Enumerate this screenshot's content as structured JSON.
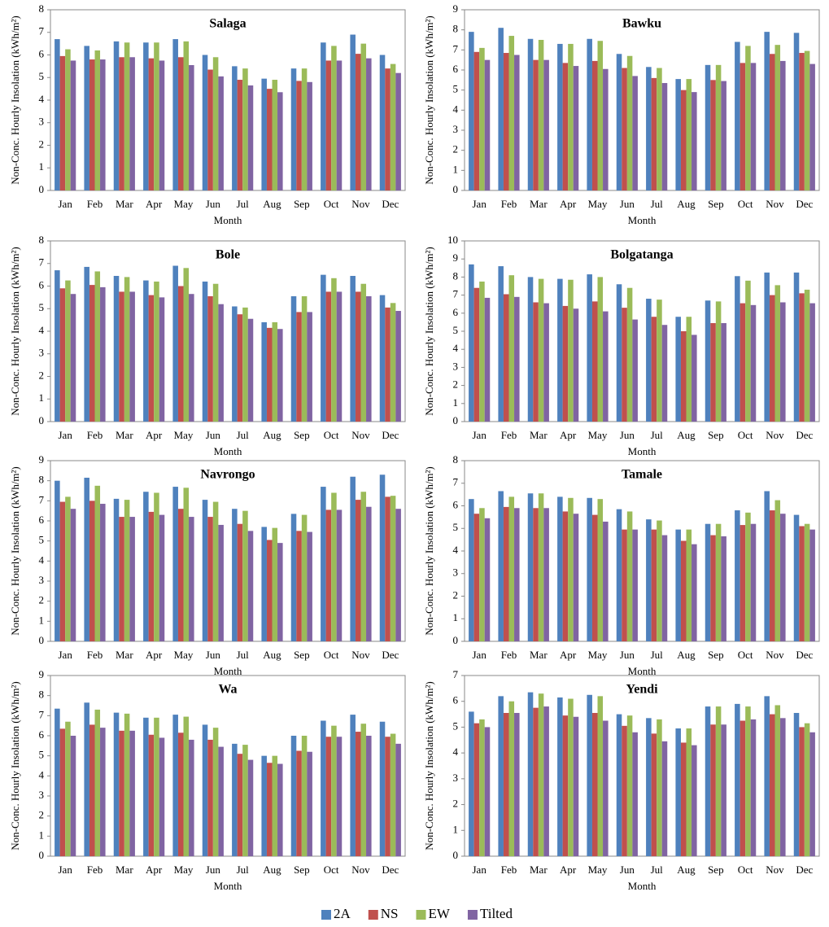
{
  "chart_data": [
    {
      "type": "bar",
      "title": "Salaga",
      "xlabel": "Month",
      "ylabel": "Non-Conc. Hourly Insolation (kWh/m²)",
      "categories": [
        "Jan",
        "Feb",
        "Mar",
        "Apr",
        "May",
        "Jun",
        "Jul",
        "Aug",
        "Sep",
        "Oct",
        "Nov",
        "Dec"
      ],
      "ylim": [
        0,
        8
      ],
      "yticks": [
        0,
        1,
        2,
        3,
        4,
        5,
        6,
        7,
        8
      ],
      "series": [
        {
          "values": [
            6.7,
            6.4,
            6.6,
            6.55,
            6.7,
            6.0,
            5.5,
            4.95,
            5.4,
            6.55,
            6.9,
            6.0
          ]
        },
        {
          "values": [
            5.95,
            5.8,
            5.9,
            5.85,
            5.9,
            5.35,
            4.9,
            4.5,
            4.85,
            5.75,
            6.05,
            5.4
          ]
        },
        {
          "values": [
            6.25,
            6.2,
            6.55,
            6.55,
            6.6,
            5.9,
            5.4,
            4.9,
            5.4,
            6.4,
            6.5,
            5.6
          ]
        },
        {
          "values": [
            5.75,
            5.8,
            5.9,
            5.75,
            5.55,
            5.05,
            4.65,
            4.35,
            4.8,
            5.75,
            5.85,
            5.2
          ]
        }
      ]
    },
    {
      "type": "bar",
      "title": "Bawku",
      "xlabel": "Month",
      "ylabel": "Non-Conc. Hourly Insolation (kWh/m²)",
      "categories": [
        "Jan",
        "Feb",
        "Mar",
        "Apr",
        "May",
        "Jun",
        "Jul",
        "Aug",
        "Sep",
        "Oct",
        "Nov",
        "Dec"
      ],
      "ylim": [
        0,
        9
      ],
      "yticks": [
        0,
        1,
        2,
        3,
        4,
        5,
        6,
        7,
        8,
        9
      ],
      "series": [
        {
          "values": [
            7.9,
            8.1,
            7.55,
            7.3,
            7.55,
            6.8,
            6.15,
            5.55,
            6.25,
            7.4,
            7.9,
            7.85
          ]
        },
        {
          "values": [
            6.9,
            6.85,
            6.5,
            6.35,
            6.45,
            6.1,
            5.6,
            5.0,
            5.5,
            6.35,
            6.8,
            6.85
          ]
        },
        {
          "values": [
            7.1,
            7.7,
            7.5,
            7.3,
            7.45,
            6.7,
            6.1,
            5.55,
            6.25,
            7.2,
            7.25,
            6.95
          ]
        },
        {
          "values": [
            6.5,
            6.75,
            6.5,
            6.2,
            6.05,
            5.7,
            5.35,
            4.9,
            5.45,
            6.35,
            6.45,
            6.3
          ]
        }
      ]
    },
    {
      "type": "bar",
      "title": "Bole",
      "xlabel": "Month",
      "ylabel": "Non-Conc. Hourly Insolation (kWh/m²)",
      "categories": [
        "Jan",
        "Feb",
        "Mar",
        "Apr",
        "May",
        "Jun",
        "Jul",
        "Aug",
        "Sep",
        "Oct",
        "Nov",
        "Dec"
      ],
      "ylim": [
        0,
        8
      ],
      "yticks": [
        0,
        1,
        2,
        3,
        4,
        5,
        6,
        7,
        8
      ],
      "series": [
        {
          "values": [
            6.7,
            6.85,
            6.45,
            6.25,
            6.9,
            6.2,
            5.1,
            4.4,
            5.55,
            6.5,
            6.45,
            5.6
          ]
        },
        {
          "values": [
            5.9,
            6.05,
            5.75,
            5.6,
            6.0,
            5.55,
            4.75,
            4.15,
            4.85,
            5.75,
            5.75,
            5.05
          ]
        },
        {
          "values": [
            6.25,
            6.65,
            6.4,
            6.2,
            6.8,
            6.1,
            5.05,
            4.4,
            5.55,
            6.35,
            6.1,
            5.25
          ]
        },
        {
          "values": [
            5.65,
            5.95,
            5.75,
            5.5,
            5.65,
            5.2,
            4.55,
            4.1,
            4.85,
            5.75,
            5.55,
            4.9
          ]
        }
      ]
    },
    {
      "type": "bar",
      "title": "Bolgatanga",
      "xlabel": "Month",
      "ylabel": "Non-Conc. Hourly Insolation (kWh/m²)",
      "categories": [
        "Jan",
        "Feb",
        "Mar",
        "Apr",
        "May",
        "Jun",
        "Jul",
        "Aug",
        "Sep",
        "Oct",
        "Nov",
        "Dec"
      ],
      "ylim": [
        0,
        10
      ],
      "yticks": [
        0,
        1,
        2,
        3,
        4,
        5,
        6,
        7,
        8,
        9,
        10
      ],
      "series": [
        {
          "values": [
            8.7,
            8.6,
            8.0,
            7.9,
            8.15,
            7.6,
            6.8,
            5.8,
            6.7,
            8.05,
            8.25,
            8.25
          ]
        },
        {
          "values": [
            7.4,
            7.05,
            6.6,
            6.4,
            6.65,
            6.3,
            5.8,
            5.0,
            5.45,
            6.55,
            7.0,
            7.1
          ]
        },
        {
          "values": [
            7.75,
            8.1,
            7.9,
            7.85,
            8.0,
            7.4,
            6.75,
            5.8,
            6.65,
            7.8,
            7.55,
            7.3
          ]
        },
        {
          "values": [
            6.85,
            6.9,
            6.55,
            6.25,
            6.1,
            5.65,
            5.35,
            4.8,
            5.45,
            6.45,
            6.6,
            6.55
          ]
        }
      ]
    },
    {
      "type": "bar",
      "title": "Navrongo",
      "xlabel": "Month",
      "ylabel": "Non-Conc. Hourly Insolation (kWh/m²)",
      "categories": [
        "Jan",
        "Feb",
        "Mar",
        "Apr",
        "May",
        "Jun",
        "Jul",
        "Aug",
        "Sep",
        "Oct",
        "Nov",
        "Dec"
      ],
      "ylim": [
        0,
        9
      ],
      "yticks": [
        0,
        1,
        2,
        3,
        4,
        5,
        6,
        7,
        8,
        9
      ],
      "series": [
        {
          "values": [
            8.0,
            8.15,
            7.1,
            7.45,
            7.7,
            7.05,
            6.6,
            5.7,
            6.35,
            7.7,
            8.2,
            8.3
          ]
        },
        {
          "values": [
            6.95,
            7.0,
            6.2,
            6.45,
            6.6,
            6.2,
            5.85,
            5.05,
            5.5,
            6.55,
            7.05,
            7.2
          ]
        },
        {
          "values": [
            7.2,
            7.75,
            7.05,
            7.4,
            7.65,
            6.95,
            6.5,
            5.65,
            6.3,
            7.4,
            7.45,
            7.25
          ]
        },
        {
          "values": [
            6.6,
            6.85,
            6.2,
            6.3,
            6.2,
            5.8,
            5.5,
            4.9,
            5.45,
            6.55,
            6.7,
            6.6
          ]
        }
      ]
    },
    {
      "type": "bar",
      "title": "Tamale",
      "xlabel": "Month",
      "ylabel": "Non-Conc. Hourly Insolation (kWh/m²)",
      "categories": [
        "Jan",
        "Feb",
        "Mar",
        "Apr",
        "May",
        "Jun",
        "Jul",
        "Aug",
        "Sep",
        "Oct",
        "Nov",
        "Dec"
      ],
      "ylim": [
        0,
        8
      ],
      "yticks": [
        0,
        1,
        2,
        3,
        4,
        5,
        6,
        7,
        8
      ],
      "series": [
        {
          "values": [
            6.3,
            6.65,
            6.55,
            6.4,
            6.35,
            5.85,
            5.4,
            4.95,
            5.2,
            5.8,
            6.65,
            5.6
          ]
        },
        {
          "values": [
            5.65,
            5.95,
            5.9,
            5.75,
            5.6,
            4.95,
            4.95,
            4.45,
            4.7,
            5.15,
            5.8,
            5.1
          ]
        },
        {
          "values": [
            5.9,
            6.4,
            6.55,
            6.35,
            6.3,
            5.75,
            5.35,
            4.95,
            5.2,
            5.7,
            6.25,
            5.2
          ]
        },
        {
          "values": [
            5.45,
            5.9,
            5.9,
            5.65,
            5.3,
            4.95,
            4.7,
            4.3,
            4.65,
            5.2,
            5.65,
            4.95
          ]
        }
      ]
    },
    {
      "type": "bar",
      "title": "Wa",
      "xlabel": "Month",
      "ylabel": "Non-Conc. Hourly Insolation (kWh/m²)",
      "categories": [
        "Jan",
        "Feb",
        "Mar",
        "Apr",
        "May",
        "Jun",
        "Jul",
        "Aug",
        "Sep",
        "Oct",
        "Nov",
        "Dec"
      ],
      "ylim": [
        0,
        9
      ],
      "yticks": [
        0,
        1,
        2,
        3,
        4,
        5,
        6,
        7,
        8,
        9
      ],
      "series": [
        {
          "values": [
            7.35,
            7.65,
            7.15,
            6.9,
            7.05,
            6.55,
            5.6,
            5.0,
            6.0,
            6.75,
            7.05,
            6.7
          ]
        },
        {
          "values": [
            6.35,
            6.55,
            6.25,
            6.05,
            6.15,
            5.8,
            5.1,
            4.65,
            5.25,
            5.95,
            6.2,
            5.95
          ]
        },
        {
          "values": [
            6.7,
            7.3,
            7.1,
            6.9,
            6.95,
            6.4,
            5.55,
            5.0,
            6.0,
            6.5,
            6.6,
            6.1
          ]
        },
        {
          "values": [
            6.0,
            6.4,
            6.25,
            5.9,
            5.8,
            5.45,
            4.8,
            4.6,
            5.2,
            5.95,
            6.0,
            5.6
          ]
        }
      ]
    },
    {
      "type": "bar",
      "title": "Yendi",
      "xlabel": "Month",
      "ylabel": "Non-Conc. Hourly Insolation (kWh/m²)",
      "categories": [
        "Jan",
        "Feb",
        "Mar",
        "Apr",
        "May",
        "Jun",
        "Jul",
        "Aug",
        "Sep",
        "Oct",
        "Nov",
        "Dec"
      ],
      "ylim": [
        0,
        7
      ],
      "yticks": [
        0,
        1,
        2,
        3,
        4,
        5,
        6,
        7
      ],
      "series": [
        {
          "values": [
            5.6,
            6.2,
            6.35,
            6.15,
            6.25,
            5.5,
            5.35,
            4.95,
            5.8,
            5.9,
            6.2,
            5.55
          ]
        },
        {
          "values": [
            5.15,
            5.55,
            5.75,
            5.45,
            5.55,
            5.05,
            4.75,
            4.4,
            5.1,
            5.25,
            5.5,
            5.0
          ]
        },
        {
          "values": [
            5.3,
            6.0,
            6.3,
            6.1,
            6.2,
            5.45,
            5.3,
            4.95,
            5.8,
            5.8,
            5.85,
            5.15
          ]
        },
        {
          "values": [
            5.0,
            5.55,
            5.8,
            5.4,
            5.25,
            4.8,
            4.45,
            4.3,
            5.1,
            5.3,
            5.35,
            4.8
          ]
        }
      ]
    }
  ],
  "legend": {
    "position": "bottom",
    "series": [
      {
        "name": "2A",
        "color": "#4f81bd"
      },
      {
        "name": "NS",
        "color": "#c0504d"
      },
      {
        "name": "EW",
        "color": "#9bbb59"
      },
      {
        "name": "Tilted",
        "color": "#8064a2"
      }
    ]
  }
}
